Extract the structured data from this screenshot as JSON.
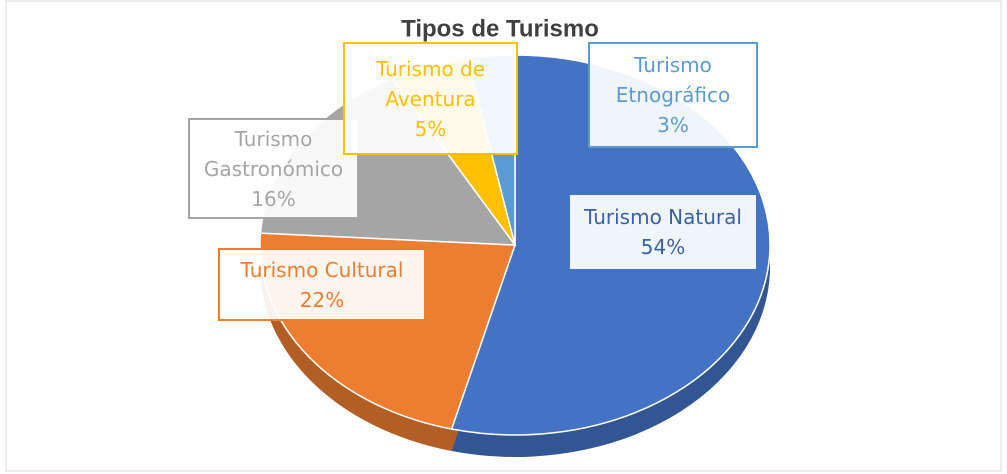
{
  "chart_data": {
    "type": "pie",
    "title": "Tipos de Turismo",
    "categories": [
      "Turismo Natural",
      "Turismo Cultural",
      "Turismo Gastronómico",
      "Turismo de Aventura",
      "Turismo Etnográfico"
    ],
    "values": [
      54,
      22,
      16,
      5,
      3
    ],
    "value_labels": [
      "54%",
      "22%",
      "16%",
      "5%",
      "3%"
    ],
    "colors": [
      "#4472c4",
      "#ed7d31",
      "#a5a5a5",
      "#ffc000",
      "#5b9bd5"
    ]
  }
}
